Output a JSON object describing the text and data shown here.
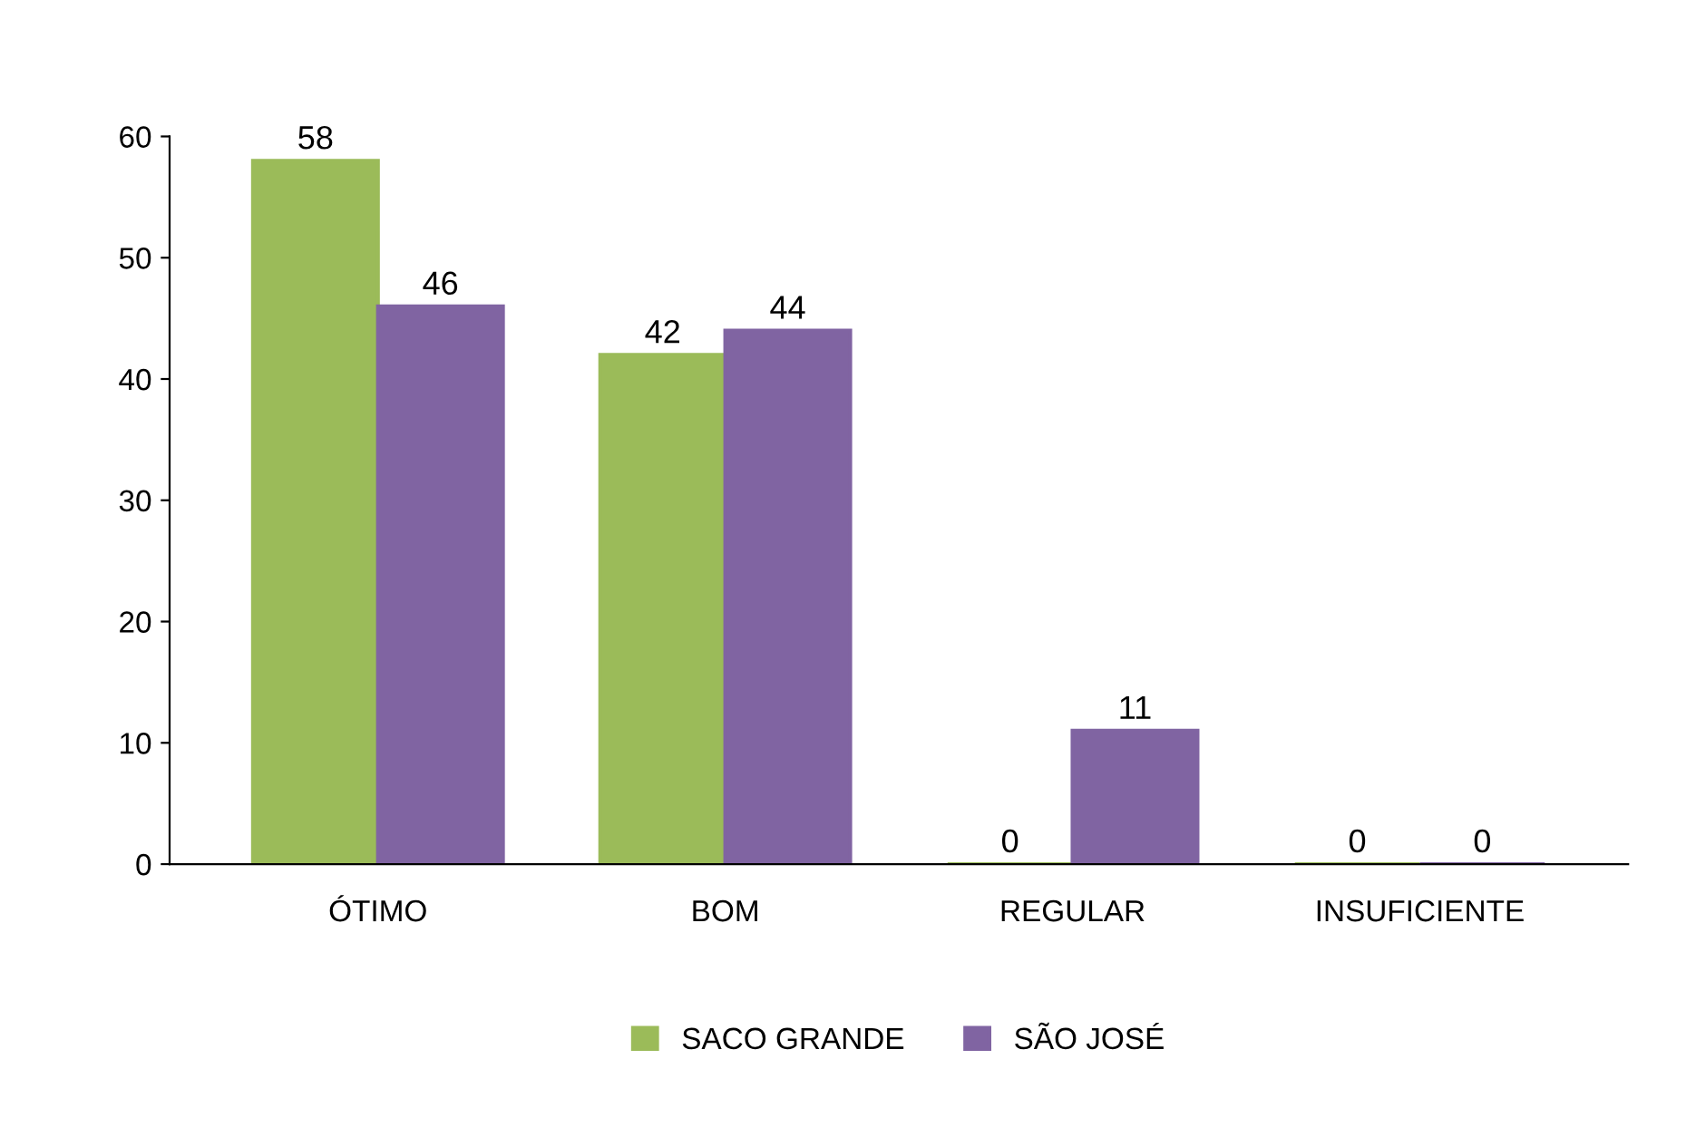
{
  "chart_data": {
    "type": "bar",
    "categories": [
      "ÓTIMO",
      "BOM",
      "REGULAR",
      "INSUFICIENTE"
    ],
    "series": [
      {
        "name": "SACO GRANDE",
        "color": "#9bbb59",
        "values": [
          58,
          42,
          0,
          0
        ]
      },
      {
        "name": "SÃO JOSÉ",
        "color": "#8064a2",
        "values": [
          46,
          44,
          11,
          0
        ]
      }
    ],
    "ylim": [
      0,
      60
    ],
    "yticks": [
      0,
      10,
      20,
      30,
      40,
      50,
      60
    ],
    "grid": false,
    "legend": "bottom",
    "data_labels": true
  }
}
